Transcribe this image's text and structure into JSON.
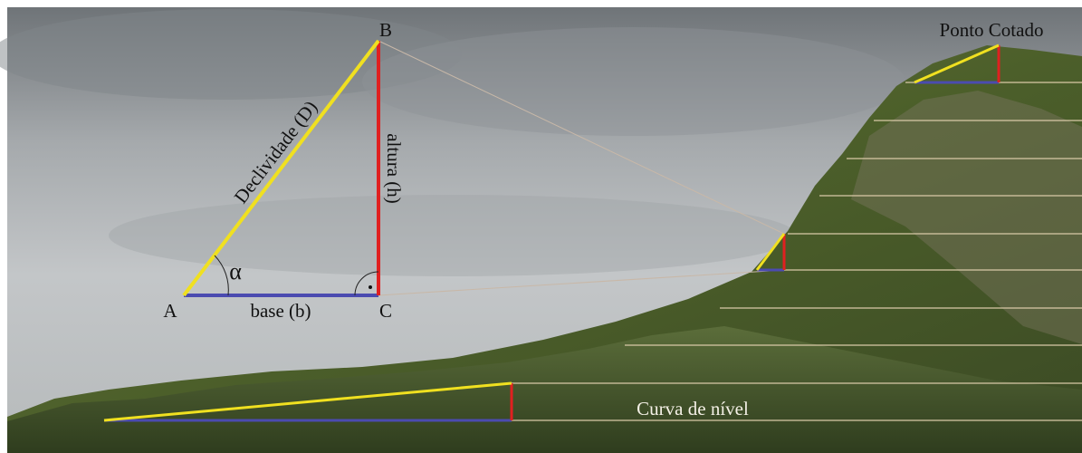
{
  "diagram": {
    "labels": {
      "vertex_a": "A",
      "vertex_b": "B",
      "vertex_c": "C",
      "hypotenuse": "Declividade (D)",
      "height": "altura (h)",
      "base": "base (b)",
      "angle": "α",
      "spot_height": "Ponto Cotado",
      "contour_line": "Curva de nível"
    }
  }
}
